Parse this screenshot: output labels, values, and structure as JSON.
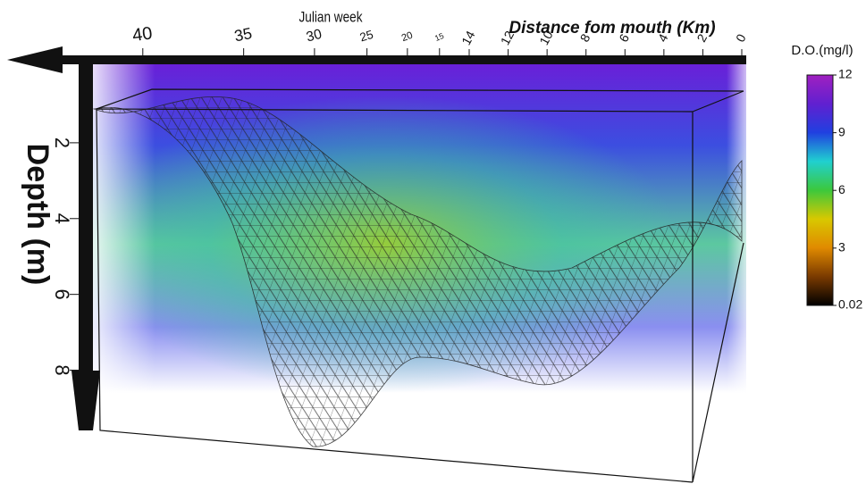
{
  "chart_data": {
    "type": "volume",
    "x_label": "Julian week",
    "xlim": [
      42,
      12
    ],
    "xticks": [
      40,
      35,
      30,
      25,
      20,
      15
    ],
    "z_label": "Distance fom mouth (Km)",
    "zlim": [
      14,
      0
    ],
    "zticks": [
      14,
      12,
      10,
      8,
      6,
      4,
      2,
      0
    ],
    "y_label": "Depth (m)",
    "ylim": [
      0,
      9
    ],
    "yticks": [
      2,
      4,
      6,
      8
    ],
    "colorbar": {
      "title": "D.O.(mg/l)",
      "lim": [
        0.02,
        12
      ],
      "ticks": [
        12,
        9,
        6,
        3,
        0.02
      ],
      "colors": [
        "#000000",
        "#7a3a00",
        "#e08a00",
        "#d8c800",
        "#3cc83c",
        "#20d0d0",
        "#2040e0",
        "#6020d0",
        "#a020c0"
      ]
    }
  }
}
